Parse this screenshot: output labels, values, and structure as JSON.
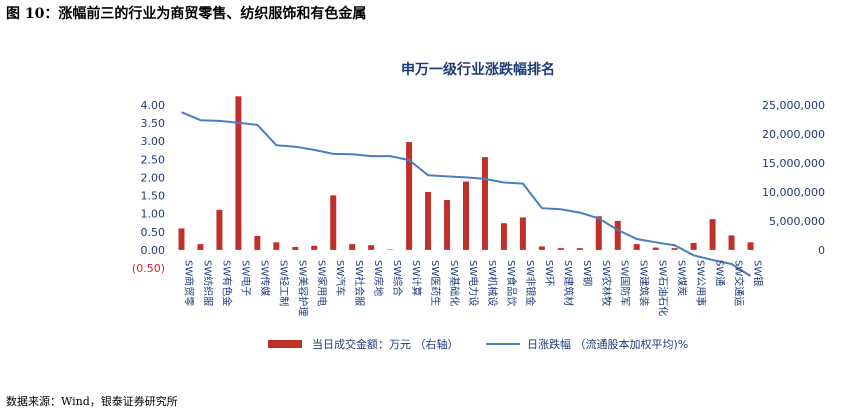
{
  "figure": {
    "caption": "图 10：涨幅前三的行业为商贸零售、纺织服饰和有色金属",
    "source": "数据来源：Wind，银泰证券研究所"
  },
  "chart_data": {
    "type": "bar+line",
    "title": "申万一级行业涨跌幅排名",
    "categories": [
      "SW商贸零售",
      "SW纺织服饰",
      "SW有色金属",
      "SW电子",
      "SW传媒",
      "SW轻工制造",
      "SW美容护理",
      "SW家用电器",
      "SW汽车",
      "SW社会服务",
      "SW房地产",
      "SW综合",
      "SW计算机",
      "SW医药生物",
      "SW基础化工",
      "SW电力设备",
      "SW机械设备",
      "SW食品饮料",
      "SW非银金融",
      "SW环保",
      "SW建筑材料",
      "SW钢铁",
      "SW农林牧渔",
      "SW国防军工",
      "SW建筑装饰",
      "SW石油石化",
      "SW煤炭",
      "SW公用事业",
      "SW通信",
      "SW交通运输",
      "SW银行"
    ],
    "category_labels": [
      "SW商贸零",
      "SW纺织服",
      "SW有色金",
      "SW电子",
      "SW传媒",
      "SW轻工制",
      "SW美容护理",
      "SW家用电",
      "SW汽车",
      "SW社会服",
      "SW房地",
      "SW综合",
      "SW计算",
      "SW医药生",
      "SW基础化",
      "SW电力设",
      "SW机械设",
      "SW食品饮",
      "SW非银金",
      "SW环",
      "SW建筑材",
      "SW钢",
      "SW农林牧",
      "SW国防军",
      "SW建筑装",
      "SW石油石化",
      "SW煤炭",
      "SW公用事",
      "SW通",
      "SW交通运",
      "SW银"
    ],
    "series": [
      {
        "name": "当日成交金额：万元 （右轴）",
        "type": "bar",
        "axis": "right",
        "color": "#c0302a",
        "values": [
          3700000,
          1000000,
          6900000,
          26500000,
          2400000,
          1300000,
          500000,
          700000,
          9400000,
          1000000,
          800000,
          0,
          18600000,
          10000000,
          8600000,
          11800000,
          16000000,
          4600000,
          5600000,
          600000,
          300000,
          300000,
          5800000,
          5000000,
          1000000,
          400000,
          300000,
          1200000,
          5300000,
          2500000,
          1300000
        ]
      },
      {
        "name": "日涨跌幅 （流通股本加权平均)%",
        "type": "line",
        "axis": "left",
        "color": "#4a7dc2",
        "values": [
          3.8,
          3.58,
          3.56,
          3.51,
          3.45,
          2.89,
          2.85,
          2.76,
          2.65,
          2.64,
          2.59,
          2.59,
          2.48,
          2.06,
          2.03,
          2.0,
          1.96,
          1.86,
          1.83,
          1.15,
          1.12,
          1.03,
          0.87,
          0.55,
          0.3,
          0.21,
          0.13,
          -0.15,
          -0.28,
          -0.39,
          -0.72
        ]
      }
    ],
    "y_left": {
      "min": -0.5,
      "max": 4.0,
      "ticks": [
        "4.00",
        "3.50",
        "3.00",
        "2.50",
        "2.00",
        "1.50",
        "1.00",
        "0.50",
        "0.00",
        "(0.50)"
      ]
    },
    "y_right": {
      "min": 0,
      "max": 25000000,
      "ticks": [
        "25,000,000",
        "20,000,000",
        "15,000,000",
        "10,000,000",
        "5,000,000",
        "0"
      ]
    },
    "legend_placement": "bottom",
    "grid": false
  }
}
